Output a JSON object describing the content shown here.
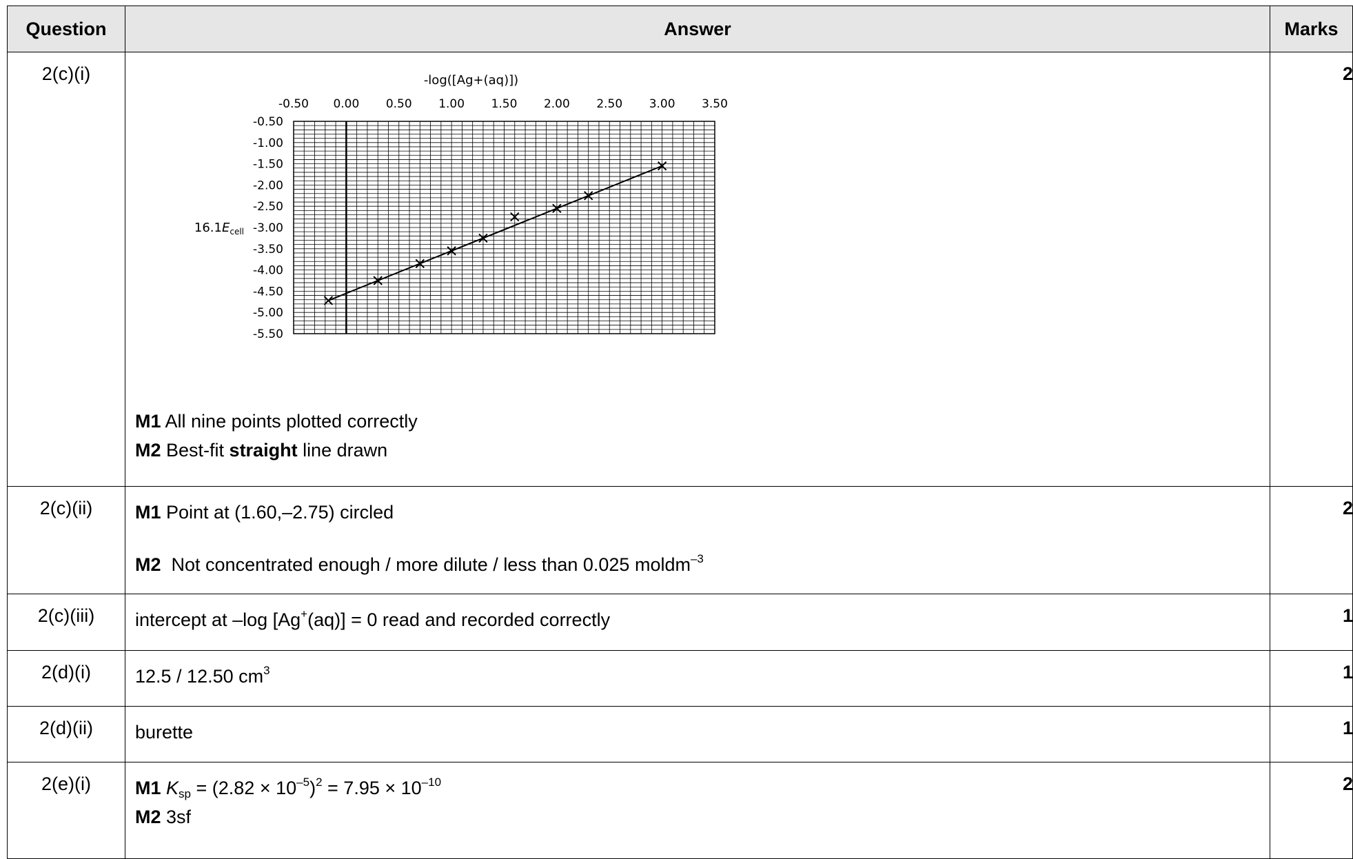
{
  "header": {
    "question": "Question",
    "answer": "Answer",
    "marks": "Marks"
  },
  "rows": [
    {
      "question": "2(c)(i)",
      "marks": "2",
      "m1_tag": "M1",
      "m1_text": " All nine points plotted correctly",
      "m2_tag": "M2",
      "m2_pre": " Best-fit ",
      "m2_bold": "straight",
      "m2_post": " line drawn"
    },
    {
      "question": "2(c)(ii)",
      "marks": "2",
      "m1_tag": "M1",
      "m1_text": " Point at (1.60,–2.75) circled",
      "m2_tag": "M2",
      "m2_text": "  Not concentrated enough / more dilute / less than 0.025 moldm",
      "m2_sup": "–3"
    },
    {
      "question": "2(c)(iii)",
      "marks": "1",
      "text_pre": "intercept at –log [Ag",
      "text_sup": "+",
      "text_post": "(aq)] = 0 read and recorded correctly"
    },
    {
      "question": "2(d)(i)",
      "marks": "1",
      "text_pre": "12.5 / 12.50 cm",
      "text_sup": "3"
    },
    {
      "question": "2(d)(ii)",
      "marks": "1",
      "text": "burette"
    },
    {
      "question": "2(e)(i)",
      "marks": "2",
      "m1_tag": "M1",
      "m1_k": "K",
      "m1_sub": "sp",
      "m1_a": " = (2.82 × 10",
      "m1_sup1": "–5",
      "m1_b": ")",
      "m1_sup2": "2",
      "m1_c": " = 7.95 × 10",
      "m1_sup3": "–10",
      "m2_tag": "M2",
      "m2_text": " 3sf"
    }
  ],
  "chart_data": {
    "type": "scatter",
    "xlabel": "-log([Ag+(aq)])",
    "ylabel_prefix": "16.1",
    "ylabel_symbol": "E",
    "ylabel_sub": "cell",
    "x_ticks": [
      "-0.50",
      "0.00",
      "0.50",
      "1.00",
      "1.50",
      "2.00",
      "2.50",
      "3.00",
      "3.50"
    ],
    "y_ticks": [
      "-0.50",
      "-1.00",
      "-1.50",
      "-2.00",
      "-2.50",
      "-3.00",
      "-3.50",
      "-4.00",
      "-4.50",
      "-5.00",
      "-5.50"
    ],
    "xlim": [
      -0.5,
      3.5
    ],
    "ylim": [
      -5.5,
      -0.5
    ],
    "grid": true,
    "points": [
      {
        "x": -0.17,
        "y": -4.72
      },
      {
        "x": 0.3,
        "y": -4.25
      },
      {
        "x": 0.7,
        "y": -3.85
      },
      {
        "x": 1.0,
        "y": -3.55
      },
      {
        "x": 1.3,
        "y": -3.25
      },
      {
        "x": 1.6,
        "y": -2.75
      },
      {
        "x": 2.0,
        "y": -2.55
      },
      {
        "x": 2.3,
        "y": -2.25
      },
      {
        "x": 3.0,
        "y": -1.55
      }
    ],
    "best_fit": {
      "x1": -0.17,
      "y1": -4.72,
      "x2": 3.0,
      "y2": -1.55
    }
  }
}
